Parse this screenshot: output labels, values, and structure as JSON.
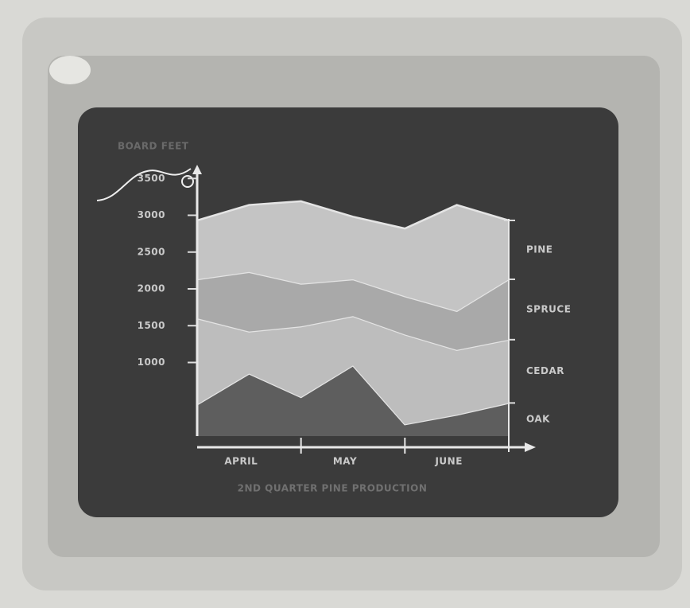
{
  "chart_data": {
    "type": "stacked-area",
    "title": "BOARD FEET",
    "caption": "2ND QUARTER PINE PRODUCTION",
    "x": [
      0,
      1,
      2,
      3,
      4,
      5,
      6
    ],
    "xlim": [
      0,
      6
    ],
    "months": [
      "APRIL",
      "MAY",
      "JUNE"
    ],
    "ylim": [
      0,
      3600
    ],
    "yticks": [
      1000,
      1500,
      2000,
      2500,
      3000,
      3500
    ],
    "series": [
      {
        "name": "OAK",
        "color": "#5e5e5e",
        "values": [
          430,
          850,
          530,
          960,
          160,
          290,
          450
        ]
      },
      {
        "name": "CEDAR",
        "color": "#bdbdbd",
        "values": [
          1170,
          570,
          960,
          670,
          1220,
          880,
          860
        ]
      },
      {
        "name": "SPRUCE",
        "color": "#a9a9a9",
        "values": [
          530,
          810,
          580,
          500,
          520,
          530,
          820
        ]
      },
      {
        "name": "PINE",
        "color": "#c4c4c4",
        "values": [
          800,
          910,
          1120,
          850,
          920,
          1440,
          800
        ]
      }
    ]
  }
}
